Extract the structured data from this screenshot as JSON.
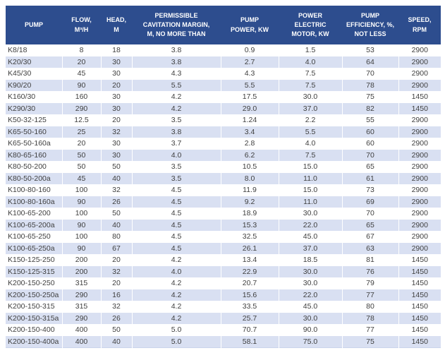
{
  "chart_data": {
    "type": "table",
    "columns": [
      {
        "id": "pump",
        "label": "PUMP",
        "lines": [
          "PUMP"
        ]
      },
      {
        "id": "flow",
        "label": "FLOW, M³/H",
        "lines": [
          "FLOW,",
          "M³/H"
        ]
      },
      {
        "id": "head",
        "label": "HEAD, M",
        "lines": [
          "HEAD,",
          "M"
        ]
      },
      {
        "id": "cavitation",
        "label": "PERMISSIBLE CAVITATION MARGIN, M, NO MORE THAN",
        "lines": [
          "PERMISSIBLE",
          "CAVITATION MARGIN,",
          "M, NO MORE THAN"
        ]
      },
      {
        "id": "pump-power",
        "label": "PUMP POWER, KW",
        "lines": [
          "PUMP",
          "POWER, KW"
        ]
      },
      {
        "id": "motor-power",
        "label": "POWER ELECTRIC MOTOR, KW",
        "lines": [
          "POWER",
          "ELECTRIC",
          "MOTOR, KW"
        ]
      },
      {
        "id": "efficiency",
        "label": "PUMP EFFICIENCY, %, NOT LESS",
        "lines": [
          "PUMP",
          "EFFICIENCY, %,",
          "NOT LESS"
        ]
      },
      {
        "id": "speed",
        "label": "SPEED, RPM",
        "lines": [
          "SPEED,",
          "RPM"
        ]
      }
    ],
    "rows": [
      [
        "K8/18",
        "8",
        "18",
        "3.8",
        "0.9",
        "1.5",
        "53",
        "2900"
      ],
      [
        "K20/30",
        "20",
        "30",
        "3.8",
        "2.7",
        "4.0",
        "64",
        "2900"
      ],
      [
        "K45/30",
        "45",
        "30",
        "4.3",
        "4.3",
        "7.5",
        "70",
        "2900"
      ],
      [
        "K90/20",
        "90",
        "20",
        "5.5",
        "5.5",
        "7.5",
        "78",
        "2900"
      ],
      [
        "K160/30",
        "160",
        "30",
        "4.2",
        "17.5",
        "30.0",
        "75",
        "1450"
      ],
      [
        "K290/30",
        "290",
        "30",
        "4.2",
        "29.0",
        "37.0",
        "82",
        "1450"
      ],
      [
        "K50-32-125",
        "12.5",
        "20",
        "3.5",
        "1.24",
        "2.2",
        "55",
        "2900"
      ],
      [
        "K65-50-160",
        "25",
        "32",
        "3.8",
        "3.4",
        "5.5",
        "60",
        "2900"
      ],
      [
        "K65-50-160a",
        "20",
        "30",
        "3.7",
        "2.8",
        "4.0",
        "60",
        "2900"
      ],
      [
        "K80-65-160",
        "50",
        "30",
        "4.0",
        "6.2",
        "7.5",
        "70",
        "2900"
      ],
      [
        "K80-50-200",
        "50",
        "50",
        "3.5",
        "10.5",
        "15.0",
        "65",
        "2900"
      ],
      [
        "K80-50-200a",
        "45",
        "40",
        "3.5",
        "8.0",
        "11.0",
        "61",
        "2900"
      ],
      [
        "K100-80-160",
        "100",
        "32",
        "4.5",
        "11.9",
        "15.0",
        "73",
        "2900"
      ],
      [
        "K100-80-160a",
        "90",
        "26",
        "4.5",
        "9.2",
        "11.0",
        "69",
        "2900"
      ],
      [
        "K100-65-200",
        "100",
        "50",
        "4.5",
        "18.9",
        "30.0",
        "70",
        "2900"
      ],
      [
        "K100-65-200a",
        "90",
        "40",
        "4.5",
        "15.3",
        "22.0",
        "65",
        "2900"
      ],
      [
        "K100-65-250",
        "100",
        "80",
        "4.5",
        "32.5",
        "45.0",
        "67",
        "2900"
      ],
      [
        "K100-65-250a",
        "90",
        "67",
        "4.5",
        "26.1",
        "37.0",
        "63",
        "2900"
      ],
      [
        "K150-125-250",
        "200",
        "20",
        "4.2",
        "13.4",
        "18.5",
        "81",
        "1450"
      ],
      [
        "K150-125-315",
        "200",
        "32",
        "4.0",
        "22.9",
        "30.0",
        "76",
        "1450"
      ],
      [
        "K200-150-250",
        "315",
        "20",
        "4.2",
        "20.7",
        "30.0",
        "79",
        "1450"
      ],
      [
        "K200-150-250a",
        "290",
        "16",
        "4.2",
        "15.6",
        "22.0",
        "77",
        "1450"
      ],
      [
        "K200-150-315",
        "315",
        "32",
        "4.2",
        "33.5",
        "45.0",
        "80",
        "1450"
      ],
      [
        "K200-150-315a",
        "290",
        "26",
        "4.2",
        "25.7",
        "30.0",
        "78",
        "1450"
      ],
      [
        "K200-150-400",
        "400",
        "50",
        "5.0",
        "70.7",
        "90.0",
        "77",
        "1450"
      ],
      [
        "K200-150-400a",
        "400",
        "40",
        "5.0",
        "58.1",
        "75.0",
        "75",
        "1450"
      ]
    ]
  },
  "style": {
    "header_bg": "#2D4D8E",
    "header_text": "#FFFFFF",
    "band_bg": "#D9E0F2",
    "row_bg": "#FFFFFF",
    "cell_text": "#3F3F3F",
    "separator": "#FFFFFF"
  }
}
